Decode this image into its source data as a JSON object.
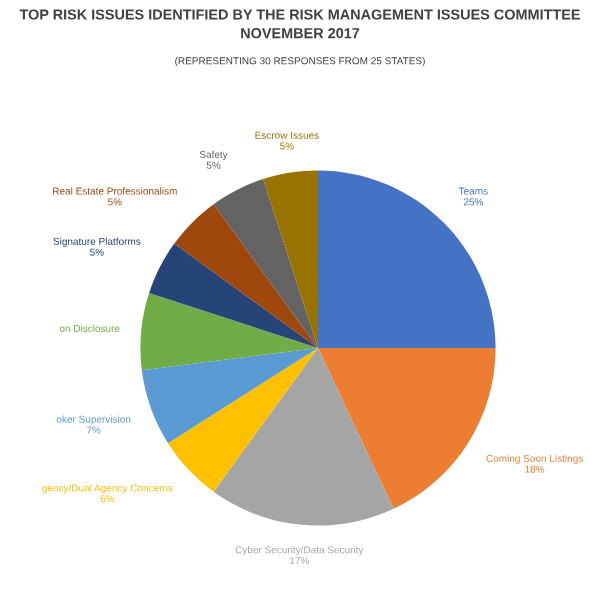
{
  "chart_data": {
    "type": "pie",
    "title": "TOP RISK ISSUES IDENTIFIED BY THE RISK MANAGEMENT ISSUES COMMITTEE\nNOVEMBER 2017",
    "subtitle": "(REPRESENTING 30 RESPONSES FROM 25 STATES)",
    "categories": [
      "Teams",
      "Coming Soon Listings",
      "Cyber Security/Data Security",
      "gency/Dual Agency Concerns",
      "oker Supervision",
      "on Disclosure",
      "Signature Platforms",
      "Real Estate Professionalism",
      "Safety",
      "Escrow Issues"
    ],
    "values": [
      25,
      18,
      17,
      6,
      7,
      7,
      5,
      5,
      5,
      5
    ],
    "value_labels": [
      "25%",
      "18%",
      "17%",
      "6%",
      "7%",
      null,
      "5%",
      "5%",
      "5%",
      "5%"
    ],
    "colors": [
      "#4472c4",
      "#ed7d31",
      "#a5a5a5",
      "#ffc000",
      "#5b9bd5",
      "#70ad47",
      "#264478",
      "#9e480e",
      "#636363",
      "#997300"
    ]
  }
}
